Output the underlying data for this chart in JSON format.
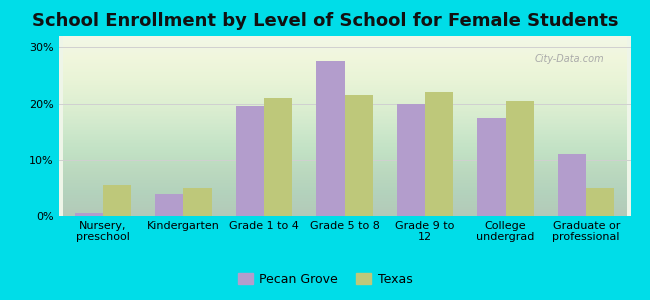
{
  "title": "School Enrollment by Level of School for Female Students",
  "categories": [
    "Nursery,\npreschool",
    "Kindergarten",
    "Grade 1 to 4",
    "Grade 5 to 8",
    "Grade 9 to\n12",
    "College\nundergrad",
    "Graduate or\nprofessional"
  ],
  "pecan_grove": [
    0.5,
    4.0,
    19.5,
    27.5,
    20.0,
    17.5,
    11.0
  ],
  "texas": [
    5.5,
    5.0,
    21.0,
    21.5,
    22.0,
    20.5,
    5.0
  ],
  "pecan_color": "#b39dcc",
  "texas_color": "#bec87a",
  "background_outer": "#00dde8",
  "grid_color": "#d0d0d0",
  "ylim": [
    0,
    32
  ],
  "yticks": [
    0,
    10,
    20,
    30
  ],
  "legend_labels": [
    "Pecan Grove",
    "Texas"
  ],
  "bar_width": 0.35,
  "title_fontsize": 13,
  "tick_fontsize": 8,
  "legend_fontsize": 9
}
